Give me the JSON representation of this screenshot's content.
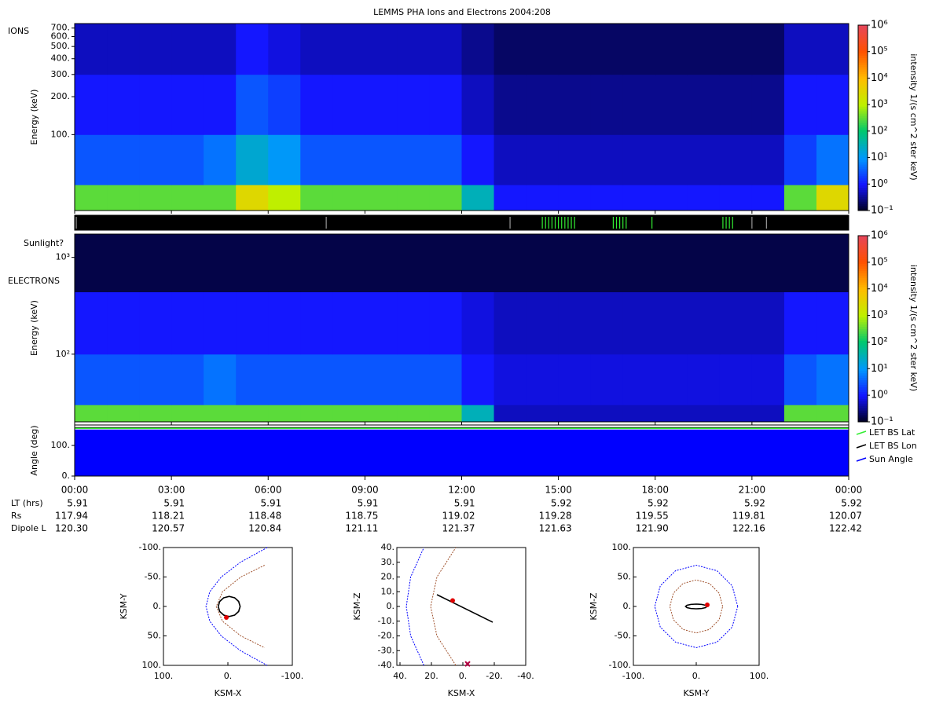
{
  "chart_data": [
    {
      "type": "heatmap",
      "title": "LEMMS PHA Ions and Electrons  2004:208",
      "label": "IONS",
      "ylabel": "Energy (keV)",
      "xlim": [
        0,
        24
      ],
      "xbins": [
        0,
        1,
        2,
        3,
        4,
        5,
        6,
        7,
        8,
        9,
        10,
        11,
        12,
        13,
        14,
        15,
        16,
        17,
        18,
        19,
        20,
        21,
        22,
        23,
        24
      ],
      "ybins": [
        25,
        40,
        100,
        300,
        760
      ],
      "ylim": [
        25,
        760
      ],
      "log_y": true,
      "yticks": [
        {
          "value": 100,
          "label": "100."
        },
        {
          "value": 200,
          "label": "200."
        },
        {
          "value": 300,
          "label": "300."
        },
        {
          "value": 400,
          "label": "400."
        },
        {
          "value": 500,
          "label": "500."
        },
        {
          "value": 600,
          "label": "600."
        },
        {
          "value": 700,
          "label": "700."
        }
      ],
      "values": [
        [
          300,
          300,
          300,
          300,
          300,
          3000,
          1000,
          300,
          300,
          300,
          300,
          300,
          30,
          1,
          1,
          1,
          1,
          1,
          1,
          1,
          1,
          1,
          300,
          3000
        ],
        [
          3,
          3,
          3,
          3,
          5,
          20,
          10,
          3,
          3,
          3,
          3,
          3,
          1,
          0.5,
          0.5,
          0.5,
          0.5,
          0.5,
          0.5,
          0.5,
          0.5,
          0.5,
          2,
          5
        ],
        [
          1,
          1,
          1,
          1,
          1,
          3,
          2,
          1,
          1,
          1,
          1,
          1,
          0.5,
          0.3,
          0.3,
          0.3,
          0.3,
          0.3,
          0.3,
          0.3,
          0.3,
          0.3,
          1,
          1
        ],
        [
          0.5,
          0.5,
          0.5,
          0.5,
          0.5,
          1,
          0.7,
          0.5,
          0.5,
          0.5,
          0.5,
          0.5,
          0.3,
          0.2,
          0.2,
          0.2,
          0.2,
          0.2,
          0.2,
          0.2,
          0.2,
          0.2,
          0.5,
          0.5
        ]
      ],
      "zlim": [
        0.1,
        1000000
      ],
      "zticks": [
        {
          "value": 0.1,
          "label": "10⁻¹"
        },
        {
          "value": 1,
          "label": "10⁰"
        },
        {
          "value": 10,
          "label": "10¹"
        },
        {
          "value": 100,
          "label": "10²"
        },
        {
          "value": 1000,
          "label": "10³"
        },
        {
          "value": 10000,
          "label": "10⁴"
        },
        {
          "value": 100000,
          "label": "10⁵"
        },
        {
          "value": 1000000,
          "label": "10⁶"
        }
      ],
      "colorbar_label": "intensity 1/(s cm^2 ster keV)"
    },
    {
      "type": "flags",
      "label": "Sunlight?",
      "xlim": [
        0,
        24
      ],
      "series": [
        {
          "color": "#33ee33",
          "x": [
            14.5,
            14.6,
            14.7,
            14.8,
            14.9,
            15.0,
            15.1,
            15.2,
            15.3,
            15.4,
            15.5,
            16.7,
            16.8,
            16.9,
            17.0,
            17.1,
            17.9,
            20.1,
            20.2,
            20.3,
            20.4
          ]
        },
        {
          "color": "#999999",
          "x": [
            0.05,
            7.8,
            13.5,
            21.0,
            21.45
          ]
        }
      ]
    },
    {
      "type": "heatmap",
      "label": "ELECTRONS",
      "ylabel": "Energy (keV)",
      "xlim": [
        0,
        24
      ],
      "xbins": [
        0,
        1,
        2,
        3,
        4,
        5,
        6,
        7,
        8,
        9,
        10,
        11,
        12,
        13,
        14,
        15,
        16,
        17,
        18,
        19,
        20,
        21,
        22,
        23,
        24
      ],
      "ybins": [
        20,
        30,
        100,
        440,
        1740
      ],
      "ylim": [
        20,
        1740
      ],
      "log_y": true,
      "yticks": [
        {
          "value": 100,
          "label": "10²"
        },
        {
          "value": 1000,
          "label": "10³"
        }
      ],
      "values": [
        [
          300,
          300,
          300,
          300,
          300,
          300,
          300,
          300,
          300,
          300,
          300,
          300,
          30,
          0.5,
          0.5,
          0.5,
          0.5,
          0.5,
          0.5,
          0.5,
          0.5,
          0.5,
          300,
          300
        ],
        [
          3,
          3,
          3,
          3,
          5,
          3,
          3,
          3,
          3,
          3,
          3,
          3,
          1,
          0.7,
          0.7,
          0.7,
          0.7,
          0.7,
          0.7,
          0.7,
          0.7,
          0.7,
          3,
          5
        ],
        [
          1,
          1,
          1,
          1,
          1,
          1,
          1,
          1,
          1,
          1,
          1,
          1,
          0.7,
          0.5,
          0.5,
          0.5,
          0.5,
          0.5,
          0.5,
          0.5,
          0.5,
          0.5,
          1,
          1
        ],
        [
          0.15,
          0.15,
          0.15,
          0.15,
          0.15,
          0.15,
          0.15,
          0.15,
          0.15,
          0.15,
          0.15,
          0.15,
          0.15,
          0.15,
          0.15,
          0.15,
          0.15,
          0.15,
          0.15,
          0.15,
          0.15,
          0.15,
          0.15,
          0.15
        ]
      ],
      "zlim": [
        0.1,
        1000000
      ],
      "zticks": [
        {
          "value": 0.1,
          "label": "10⁻¹"
        },
        {
          "value": 1,
          "label": "10⁰"
        },
        {
          "value": 10,
          "label": "10¹"
        },
        {
          "value": 100,
          "label": "10²"
        },
        {
          "value": 1000,
          "label": "10³"
        },
        {
          "value": 10000,
          "label": "10⁴"
        },
        {
          "value": 100000,
          "label": "10⁵"
        },
        {
          "value": 1000000,
          "label": "10⁶"
        }
      ],
      "colorbar_label": "intensity 1/(s cm^2 ster keV)"
    },
    {
      "type": "line",
      "ylabel": "Angle (deg)",
      "xlim": [
        0,
        24
      ],
      "ylim": [
        0,
        167
      ],
      "legend": "right",
      "yticks": [
        {
          "value": 0,
          "label": "0."
        },
        {
          "value": 100,
          "label": "100."
        }
      ],
      "xticks": [
        {
          "value": 0,
          "label": "00:00"
        },
        {
          "value": 3,
          "label": "03:00"
        },
        {
          "value": 6,
          "label": "06:00"
        },
        {
          "value": 9,
          "label": "09:00"
        },
        {
          "value": 12,
          "label": "12:00"
        },
        {
          "value": 15,
          "label": "15:00"
        },
        {
          "value": 18,
          "label": "18:00"
        },
        {
          "value": 21,
          "label": "21:00"
        },
        {
          "value": 24,
          "label": "00:00"
        }
      ],
      "x": [
        0,
        1,
        2,
        3,
        4,
        5,
        6,
        7,
        8,
        9,
        10,
        11,
        12,
        13,
        14,
        15,
        16,
        17,
        18,
        19,
        20,
        21,
        22,
        23,
        24
      ],
      "series": [
        {
          "name": "LET BS Lat",
          "color": "#33ee33",
          "values": [
            156,
            156,
            156,
            156,
            156,
            156,
            156,
            156,
            156,
            156,
            156,
            156,
            156,
            156,
            156,
            156,
            156,
            156,
            156,
            156,
            156,
            156,
            156,
            156,
            156
          ]
        },
        {
          "name": "LET BS Lon",
          "color": "#000000",
          "values": [
            158,
            158,
            158,
            158,
            158,
            158,
            158,
            158,
            158,
            158,
            158,
            158,
            158,
            158,
            158,
            158,
            158,
            158,
            158,
            158,
            158,
            158,
            158,
            158,
            158
          ]
        },
        {
          "name": "Sun Angle",
          "color": "#0000ff",
          "fill": true,
          "values": [
            151,
            151,
            151,
            151,
            151,
            151,
            151,
            151,
            151,
            151,
            151,
            151,
            151,
            151,
            151,
            151,
            151,
            151,
            151,
            151,
            151,
            151,
            151,
            151,
            151
          ]
        }
      ]
    },
    {
      "type": "orbit",
      "xlabel": "KSM-X",
      "ylabel": "KSM-Y",
      "xlim": [
        100,
        -100
      ],
      "ylim": [
        100,
        -100
      ],
      "xticks": [
        {
          "value": 100,
          "label": "100."
        },
        {
          "value": 0,
          "label": "0."
        },
        {
          "value": -100,
          "label": "-100."
        }
      ],
      "yticks": [
        {
          "value": -100,
          "label": "-100."
        },
        {
          "value": -50,
          "label": "-50."
        },
        {
          "value": 0,
          "label": "0."
        },
        {
          "value": 50,
          "label": "50."
        },
        {
          "value": 100,
          "label": "100."
        }
      ],
      "curves": [
        {
          "color": "#0000ff",
          "dash": true,
          "x": [
            -61,
            -19.4,
            10.3,
            28.1,
            34,
            28.1,
            10.3,
            -19.4,
            -61
          ],
          "y": [
            -100,
            -75,
            -50,
            -25,
            0,
            25,
            50,
            75,
            100
          ]
        },
        {
          "color": "#a0522d",
          "dash": true,
          "x": [
            -57,
            -20,
            8.4,
            18,
            8.4,
            -20,
            -57
          ],
          "y": [
            -70,
            -50,
            -25,
            0,
            25,
            50,
            70
          ]
        },
        {
          "color": "#000000",
          "x": [
            15,
            12.7,
            6.5,
            -2,
            -10.5,
            -16.7,
            -19,
            -16.7,
            -10.5,
            -2,
            6.5,
            12.7,
            15
          ],
          "y": [
            0,
            8.5,
            14.7,
            17,
            14.7,
            8.5,
            0,
            -8.5,
            -14.7,
            -17,
            -14.7,
            -8.5,
            0
          ]
        }
      ],
      "position": {
        "x": 2.4,
        "y": 18.7
      }
    },
    {
      "type": "orbit",
      "xlabel": "KSM-X",
      "ylabel": "KSM-Z",
      "xlim": [
        42,
        -40
      ],
      "ylim": [
        -40,
        40
      ],
      "xticks": [
        {
          "value": 40,
          "label": "40."
        },
        {
          "value": 20,
          "label": "20."
        },
        {
          "value": 0,
          "label": "0."
        },
        {
          "value": -20,
          "label": "-20."
        },
        {
          "value": -40,
          "label": "-40."
        }
      ],
      "yticks": [
        {
          "value": 40,
          "label": "40."
        },
        {
          "value": 30,
          "label": "30."
        },
        {
          "value": 20,
          "label": "20."
        },
        {
          "value": 10,
          "label": "10."
        },
        {
          "value": 0,
          "label": "0."
        },
        {
          "value": -10,
          "label": "-10."
        },
        {
          "value": -20,
          "label": "-20."
        },
        {
          "value": -30,
          "label": "-30."
        },
        {
          "value": -40,
          "label": "-40."
        }
      ],
      "curves": [
        {
          "color": "#0000ff",
          "dash": true,
          "x": [
            24.8,
            33.2,
            36,
            33.2,
            24.8
          ],
          "y": [
            -40,
            -20,
            0,
            20,
            40
          ]
        },
        {
          "color": "#a0522d",
          "dash": true,
          "x": [
            4.5,
            16.5,
            20.5,
            16.5,
            4.5
          ],
          "y": [
            -40,
            -20,
            0,
            20,
            40
          ]
        },
        {
          "color": "#000000",
          "x": [
            16.5,
            -19
          ],
          "y": [
            8,
            -10.7
          ]
        }
      ],
      "position": {
        "x": 6.5,
        "y": 4
      },
      "cross": {
        "x": -3,
        "y": -39
      }
    },
    {
      "type": "orbit",
      "xlabel": "KSM-Y",
      "ylabel": "KSM-Z",
      "xlim": [
        -100,
        100
      ],
      "ylim": [
        -100,
        100
      ],
      "xticks": [
        {
          "value": -100,
          "label": "-100."
        },
        {
          "value": 0,
          "label": "0."
        },
        {
          "value": 100,
          "label": "100."
        }
      ],
      "yticks": [
        {
          "value": 100,
          "label": "100."
        },
        {
          "value": 50,
          "label": "50."
        },
        {
          "value": 0,
          "label": "0."
        },
        {
          "value": -50,
          "label": "-50."
        },
        {
          "value": -100,
          "label": "-100."
        }
      ],
      "curves": [
        {
          "color": "#0000ff",
          "dash": true,
          "x": [
            66,
            57.2,
            33,
            0,
            -33,
            -57.2,
            -66,
            -57.2,
            -33,
            0,
            33,
            57.2,
            66
          ],
          "y": [
            0,
            35,
            60.6,
            70,
            60.6,
            35,
            0,
            -35,
            -60.6,
            -70,
            -60.6,
            -35,
            0
          ]
        },
        {
          "color": "#a0522d",
          "dash": true,
          "x": [
            42,
            36.4,
            21,
            0,
            -21,
            -36.4,
            -42,
            -36.4,
            -21,
            0,
            21,
            36.4,
            42
          ],
          "y": [
            0,
            22.5,
            39,
            45,
            39,
            22.5,
            0,
            -22.5,
            -39,
            -45,
            -39,
            -22.5,
            0
          ]
        },
        {
          "color": "#000000",
          "x": [
            17,
            14.7,
            8.5,
            0,
            -8.5,
            -14.7,
            -17,
            -14.7,
            -8.5,
            0,
            8.5,
            14.7,
            17
          ],
          "y": [
            0,
            2,
            3.5,
            4,
            3.5,
            2,
            0,
            -2,
            -3.5,
            -4,
            -3.5,
            -2,
            0
          ]
        }
      ],
      "position": {
        "x": 17.5,
        "y": 2.7
      }
    }
  ],
  "ephemeris": {
    "labels": [
      "LT (hrs)",
      "Rs",
      "Dipole L"
    ],
    "rows": [
      [
        "5.91",
        "5.91",
        "5.91",
        "5.91",
        "5.91",
        "5.92",
        "5.92",
        "5.92",
        "5.92"
      ],
      [
        "117.94",
        "118.21",
        "118.48",
        "118.75",
        "119.02",
        "119.28",
        "119.55",
        "119.81",
        "120.07"
      ],
      [
        "120.30",
        "120.57",
        "120.84",
        "121.11",
        "121.37",
        "121.63",
        "121.90",
        "122.16",
        "122.42"
      ]
    ]
  }
}
